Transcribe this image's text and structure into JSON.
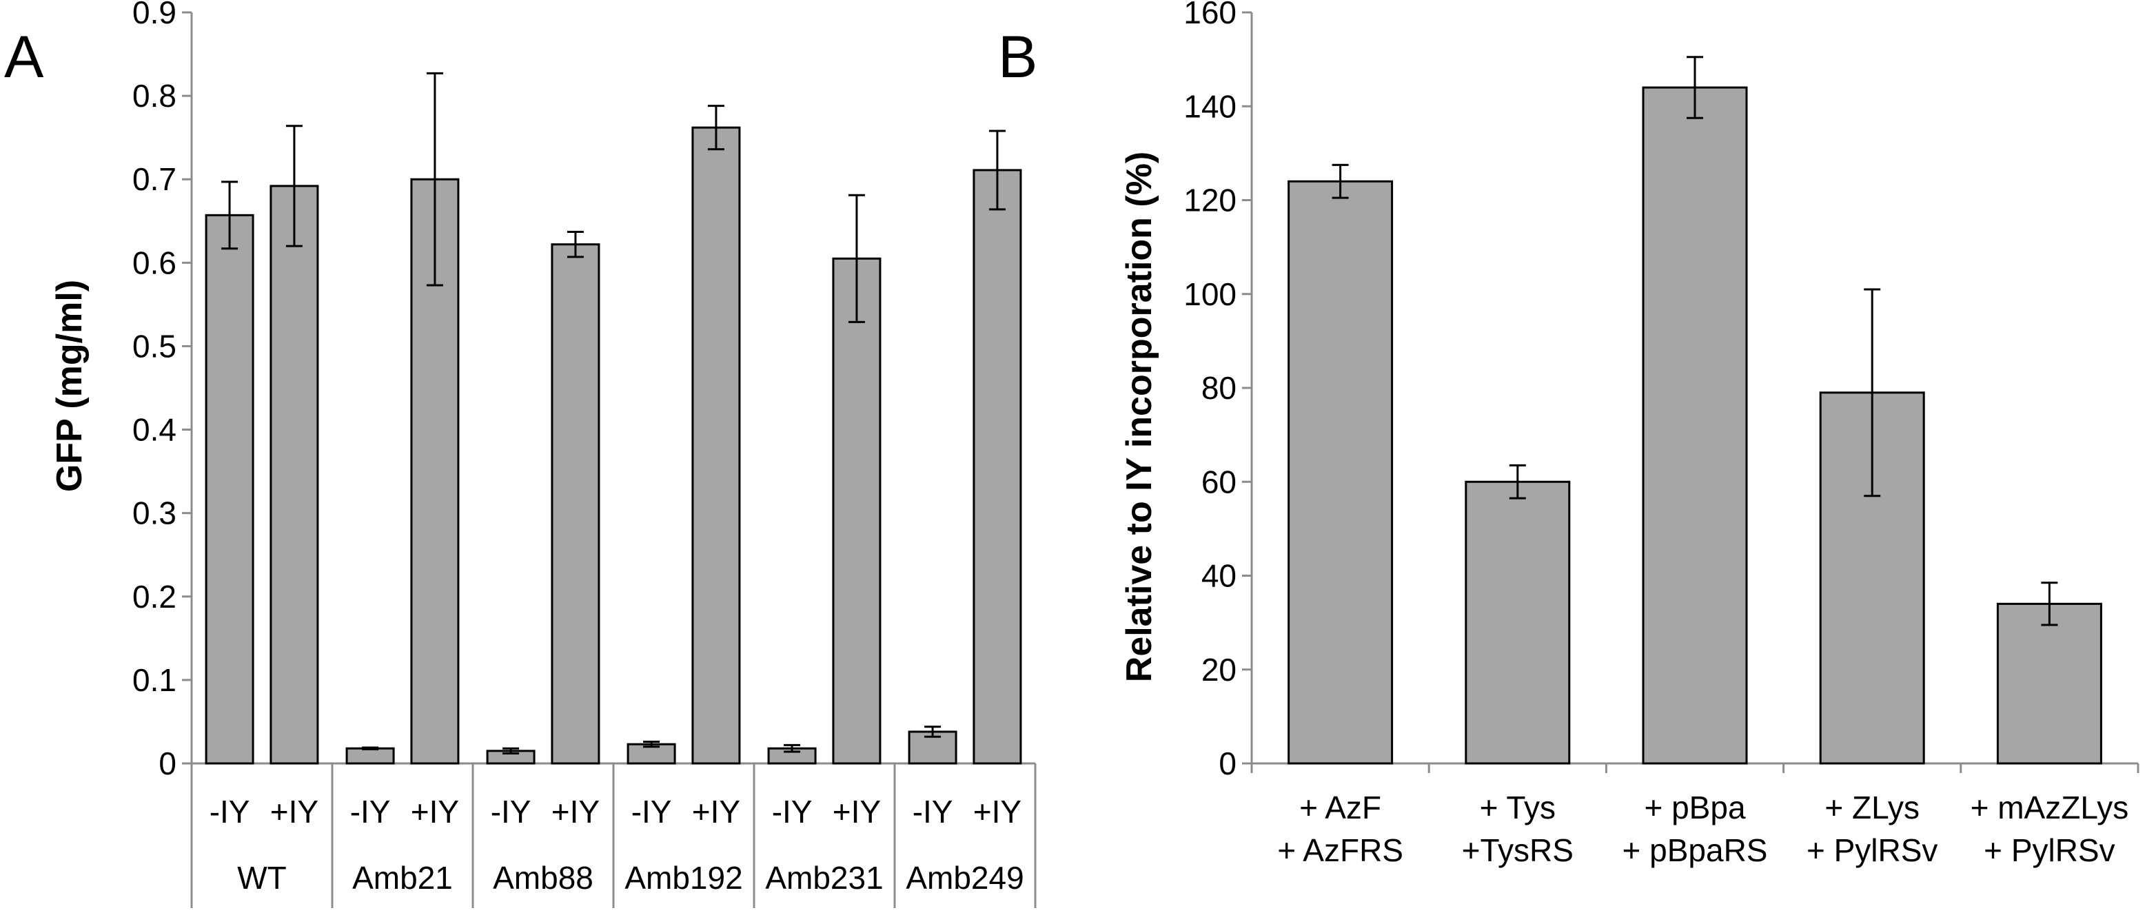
{
  "chart_data": [
    {
      "type": "bar",
      "panel_label": "A",
      "ylabel": "GFP (mg/ml)",
      "ylim": [
        0,
        0.9
      ],
      "yticks": [
        "0",
        "0.1",
        "0.2",
        "0.3",
        "0.4",
        "0.5",
        "0.6",
        "0.7",
        "0.8",
        "0.9"
      ],
      "groups": [
        {
          "name": "WT",
          "bars": [
            {
              "label": "-IY",
              "value": 0.657,
              "error": 0.04
            },
            {
              "label": "+IY",
              "value": 0.692,
              "error": 0.072
            }
          ]
        },
        {
          "name": "Amb21",
          "bars": [
            {
              "label": "-IY",
              "value": 0.018,
              "error": 0.001
            },
            {
              "label": "+IY",
              "value": 0.7,
              "error": 0.127
            }
          ]
        },
        {
          "name": "Amb88",
          "bars": [
            {
              "label": "-IY",
              "value": 0.015,
              "error": 0.003
            },
            {
              "label": "+IY",
              "value": 0.622,
              "error": 0.015
            }
          ]
        },
        {
          "name": "Amb192",
          "bars": [
            {
              "label": "-IY",
              "value": 0.023,
              "error": 0.003
            },
            {
              "label": "+IY",
              "value": 0.762,
              "error": 0.026
            }
          ]
        },
        {
          "name": "Amb231",
          "bars": [
            {
              "label": "-IY",
              "value": 0.018,
              "error": 0.004
            },
            {
              "label": "+IY",
              "value": 0.605,
              "error": 0.076
            }
          ]
        },
        {
          "name": "Amb249",
          "bars": [
            {
              "label": "-IY",
              "value": 0.038,
              "error": 0.006
            },
            {
              "label": "+IY",
              "value": 0.711,
              "error": 0.047
            }
          ]
        }
      ],
      "bar_color": "#a6a6a6"
    },
    {
      "type": "bar",
      "panel_label": "B",
      "ylabel": "Relative to IY incorporation (%)",
      "ylim": [
        0,
        160
      ],
      "yticks": [
        "0",
        "20",
        "40",
        "60",
        "80",
        "100",
        "120",
        "140",
        "160"
      ],
      "categories": [
        [
          "+ AzF",
          "+ AzFRS"
        ],
        [
          "+ Tys",
          "+TysRS"
        ],
        [
          "+ pBpa",
          "+ pBpaRS"
        ],
        [
          "+ ZLys",
          "+ PylRSv"
        ],
        [
          "+ mAzZLys",
          "+ PylRSv"
        ]
      ],
      "values": [
        124,
        60,
        144,
        79,
        34
      ],
      "errors": [
        3.5,
        3.5,
        6.5,
        22,
        4.5
      ],
      "bar_color": "#a6a6a6"
    }
  ]
}
